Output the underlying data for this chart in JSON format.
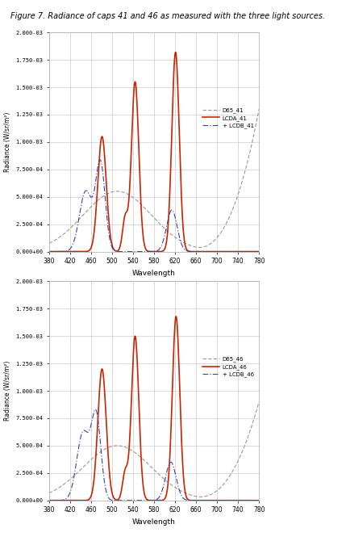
{
  "title": "Figure 7. Radiance of caps 41 and 46 as measured with the three light sources.",
  "ylabel": "Radiance (W/sr/m²)",
  "xlabel": "Wavelength",
  "xlim": [
    380,
    780
  ],
  "ylim": [
    0,
    0.002
  ],
  "yticks": [
    0.0,
    0.00025,
    0.0005,
    0.00075,
    0.001,
    0.00125,
    0.0015,
    0.00175,
    0.002
  ],
  "ytick_labels": [
    "0.000+00",
    "2.500-04",
    "5.000-04",
    "7.500-04",
    "1.000-03",
    "1.250-03",
    "1.500-03",
    "1.750-03",
    "2.000-03"
  ],
  "xticks": [
    380,
    420,
    460,
    500,
    540,
    580,
    620,
    660,
    700,
    740,
    780
  ],
  "legend1": [
    "D65_41",
    "LCDA_41",
    "+ LCDB_41"
  ],
  "legend2": [
    "D65_46",
    "LCDA_46",
    "+ LCDB_46"
  ],
  "color_D65": "#999999",
  "color_LCDA": "#cc2200",
  "color_LCDB": "#3344aa",
  "background_color": "#ffffff",
  "grid_color": "#cccccc"
}
